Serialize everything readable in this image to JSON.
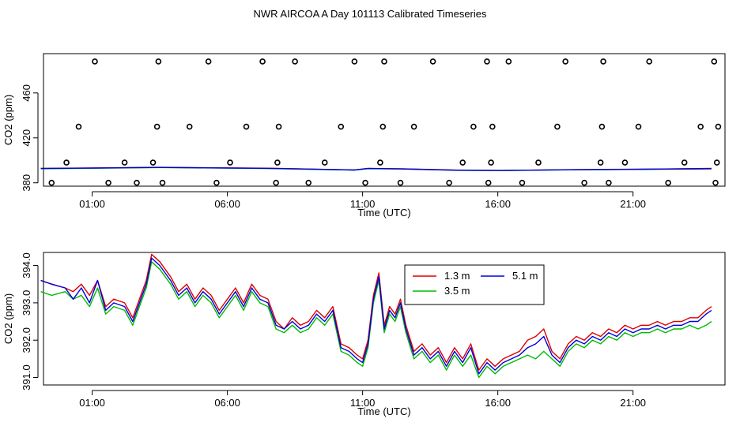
{
  "title": "NWR AIRCOA A  Day 101113  Calibrated Timeseries",
  "chart_data": [
    {
      "type": "scatter+line",
      "name": "top-panel",
      "xlabel": "Time (UTC)",
      "ylabel": "CO2 (ppm)",
      "xlim": [
        -0.8,
        24.4
      ],
      "ylim": [
        377,
        495
      ],
      "xticks": [
        1,
        6,
        11,
        16,
        21
      ],
      "xticklabels": [
        "01:00",
        "06:00",
        "11:00",
        "16:00",
        "21:00"
      ],
      "yticks": [
        380,
        420,
        460
      ],
      "yticklabels": [
        "380",
        "420",
        "460"
      ],
      "points_x": [
        -0.5,
        0.05,
        0.5,
        1.1,
        1.6,
        2.2,
        2.65,
        3.25,
        3.4,
        3.45,
        3.6,
        4.6,
        5.3,
        5.6,
        6.1,
        6.7,
        7.3,
        7.8,
        7.85,
        7.9,
        8.5,
        9.0,
        9.6,
        10.2,
        10.7,
        11.1,
        11.65,
        11.75,
        11.8,
        12.4,
        12.9,
        13.6,
        14.2,
        14.7,
        15.1,
        15.6,
        15.65,
        15.75,
        15.8,
        16.4,
        16.9,
        17.5,
        18.2,
        18.5,
        19.2,
        19.8,
        19.85,
        19.9,
        20.1,
        20.7,
        21.2,
        21.6,
        22.3,
        22.9,
        23.5,
        24.0,
        24.05,
        24.1,
        24.15
      ],
      "points_y": [
        380,
        398,
        430,
        488,
        380,
        398,
        380,
        398,
        430,
        488,
        380,
        430,
        488,
        380,
        398,
        430,
        488,
        380,
        398,
        430,
        488,
        380,
        398,
        430,
        488,
        380,
        398,
        430,
        488,
        380,
        430,
        488,
        380,
        398,
        430,
        488,
        380,
        398,
        430,
        488,
        380,
        398,
        430,
        488,
        380,
        398,
        430,
        488,
        380,
        398,
        430,
        488,
        380,
        398,
        430,
        488,
        380,
        398,
        430
      ],
      "series": [
        {
          "name": "1.3 m",
          "color": "#dd0000",
          "x": [
            -0.9,
            3.5,
            7.5,
            10.7,
            11.2,
            12.4,
            14.5,
            16.0,
            19.0,
            21.5,
            23.9
          ],
          "y": [
            392.8,
            393.8,
            393.0,
            391.5,
            392.8,
            392.5,
            391.3,
            391.0,
            391.8,
            392.2,
            392.8
          ]
        },
        {
          "name": "3.5 m",
          "color": "#00bb00",
          "x": [
            -0.9,
            3.5,
            7.5,
            10.7,
            11.2,
            12.4,
            14.5,
            16.0,
            19.0,
            21.5,
            23.9
          ],
          "y": [
            392.5,
            393.6,
            392.7,
            391.3,
            392.6,
            392.3,
            391.1,
            390.9,
            391.6,
            392.0,
            392.4
          ]
        },
        {
          "name": "5.1 m",
          "color": "#0000dd",
          "x": [
            -0.9,
            3.5,
            7.5,
            10.7,
            11.2,
            12.4,
            14.5,
            16.0,
            19.0,
            21.5,
            23.9
          ],
          "y": [
            392.7,
            393.7,
            392.9,
            391.4,
            392.7,
            392.4,
            391.2,
            391.0,
            391.7,
            392.1,
            392.6
          ]
        }
      ]
    },
    {
      "type": "line",
      "name": "bottom-panel",
      "xlabel": "Time (UTC)",
      "ylabel": "CO2 (ppm)",
      "xlim": [
        -0.8,
        24.4
      ],
      "ylim": [
        390.8,
        394.35
      ],
      "xticks": [
        1,
        6,
        11,
        16,
        21
      ],
      "xticklabels": [
        "01:00",
        "06:00",
        "11:00",
        "16:00",
        "21:00"
      ],
      "yticks": [
        391.0,
        392.0,
        393.0,
        394.0
      ],
      "yticklabels": [
        "391.0",
        "392.0",
        "393.0",
        "394.0"
      ],
      "legend": "top-center",
      "series": [
        {
          "name": "1.3 m",
          "color": "#dd0000",
          "x": [
            -0.9,
            -0.5,
            0,
            0.3,
            0.6,
            0.9,
            1.2,
            1.5,
            1.8,
            2.2,
            2.5,
            2.8,
            3.0,
            3.2,
            3.5,
            3.9,
            4.2,
            4.5,
            4.8,
            5.1,
            5.4,
            5.7,
            6.0,
            6.3,
            6.6,
            6.9,
            7.2,
            7.5,
            7.8,
            8.1,
            8.4,
            8.7,
            9.0,
            9.3,
            9.6,
            9.9,
            10.2,
            10.5,
            10.8,
            11.0,
            11.2,
            11.4,
            11.6,
            11.8,
            12.0,
            12.2,
            12.4,
            12.6,
            12.9,
            13.2,
            13.5,
            13.8,
            14.1,
            14.4,
            14.7,
            15.0,
            15.3,
            15.6,
            15.9,
            16.2,
            16.5,
            16.8,
            17.1,
            17.4,
            17.7,
            18.0,
            18.3,
            18.6,
            18.9,
            19.2,
            19.5,
            19.8,
            20.1,
            20.4,
            20.7,
            21.0,
            21.3,
            21.6,
            21.9,
            22.2,
            22.5,
            22.8,
            23.1,
            23.4,
            23.7,
            23.9
          ],
          "y": [
            393.6,
            393.5,
            393.4,
            393.3,
            393.5,
            393.2,
            393.6,
            392.9,
            393.1,
            393.0,
            392.6,
            393.2,
            393.6,
            394.3,
            394.1,
            393.7,
            393.3,
            393.5,
            393.1,
            393.4,
            393.2,
            392.8,
            393.1,
            393.4,
            393.0,
            393.5,
            393.2,
            393.1,
            392.5,
            392.3,
            392.6,
            392.4,
            392.5,
            392.8,
            392.6,
            392.9,
            391.9,
            391.8,
            391.6,
            391.5,
            392.0,
            393.2,
            393.8,
            392.4,
            392.9,
            392.7,
            393.1,
            392.4,
            391.7,
            391.9,
            391.6,
            391.8,
            391.4,
            391.8,
            391.5,
            391.9,
            391.2,
            391.5,
            391.3,
            391.5,
            391.6,
            391.7,
            392.0,
            392.1,
            392.3,
            391.7,
            391.5,
            391.9,
            392.1,
            392.0,
            392.2,
            392.1,
            392.3,
            392.2,
            392.4,
            392.3,
            392.4,
            392.4,
            392.5,
            392.4,
            392.5,
            392.5,
            392.6,
            392.6,
            392.8,
            392.9
          ]
        },
        {
          "name": "3.5 m",
          "color": "#00bb00",
          "x": [
            -0.9,
            -0.5,
            0,
            0.3,
            0.6,
            0.9,
            1.2,
            1.5,
            1.8,
            2.2,
            2.5,
            2.8,
            3.0,
            3.2,
            3.5,
            3.9,
            4.2,
            4.5,
            4.8,
            5.1,
            5.4,
            5.7,
            6.0,
            6.3,
            6.6,
            6.9,
            7.2,
            7.5,
            7.8,
            8.1,
            8.4,
            8.7,
            9.0,
            9.3,
            9.6,
            9.9,
            10.2,
            10.5,
            10.8,
            11.0,
            11.2,
            11.4,
            11.6,
            11.8,
            12.0,
            12.2,
            12.4,
            12.6,
            12.9,
            13.2,
            13.5,
            13.8,
            14.1,
            14.4,
            14.7,
            15.0,
            15.3,
            15.6,
            15.9,
            16.2,
            16.5,
            16.8,
            17.1,
            17.4,
            17.7,
            18.0,
            18.3,
            18.6,
            18.9,
            19.2,
            19.5,
            19.8,
            20.1,
            20.4,
            20.7,
            21.0,
            21.3,
            21.6,
            21.9,
            22.2,
            22.5,
            22.8,
            23.1,
            23.4,
            23.7,
            23.9
          ],
          "y": [
            393.3,
            393.2,
            393.3,
            393.1,
            393.2,
            392.9,
            393.4,
            392.7,
            392.9,
            392.8,
            392.4,
            393.0,
            393.4,
            394.1,
            393.9,
            393.5,
            393.1,
            393.3,
            392.9,
            393.2,
            393.0,
            392.6,
            392.9,
            393.2,
            392.8,
            393.3,
            393.0,
            392.9,
            392.3,
            392.2,
            392.4,
            392.2,
            392.3,
            392.6,
            392.4,
            392.7,
            391.7,
            391.6,
            391.4,
            391.3,
            391.8,
            393.0,
            393.6,
            392.2,
            392.7,
            392.5,
            392.9,
            392.2,
            391.5,
            391.7,
            391.4,
            391.6,
            391.2,
            391.6,
            391.3,
            391.6,
            391.0,
            391.3,
            391.1,
            391.3,
            391.4,
            391.5,
            391.6,
            391.5,
            391.7,
            391.5,
            391.3,
            391.7,
            391.9,
            391.8,
            392.0,
            391.9,
            392.1,
            392.0,
            392.2,
            392.1,
            392.2,
            392.2,
            392.3,
            392.2,
            392.3,
            392.3,
            392.4,
            392.3,
            392.4,
            392.5
          ]
        },
        {
          "name": "5.1 m",
          "color": "#0000dd",
          "x": [
            -0.9,
            -0.5,
            0,
            0.3,
            0.6,
            0.9,
            1.2,
            1.5,
            1.8,
            2.2,
            2.5,
            2.8,
            3.0,
            3.2,
            3.5,
            3.9,
            4.2,
            4.5,
            4.8,
            5.1,
            5.4,
            5.7,
            6.0,
            6.3,
            6.6,
            6.9,
            7.2,
            7.5,
            7.8,
            8.1,
            8.4,
            8.7,
            9.0,
            9.3,
            9.6,
            9.9,
            10.2,
            10.5,
            10.8,
            11.0,
            11.2,
            11.4,
            11.6,
            11.8,
            12.0,
            12.2,
            12.4,
            12.6,
            12.9,
            13.2,
            13.5,
            13.8,
            14.1,
            14.4,
            14.7,
            15.0,
            15.3,
            15.6,
            15.9,
            16.2,
            16.5,
            16.8,
            17.1,
            17.4,
            17.7,
            18.0,
            18.3,
            18.6,
            18.9,
            19.2,
            19.5,
            19.8,
            20.1,
            20.4,
            20.7,
            21.0,
            21.3,
            21.6,
            21.9,
            22.2,
            22.5,
            22.8,
            23.1,
            23.4,
            23.7,
            23.9
          ],
          "y": [
            393.6,
            393.5,
            393.4,
            393.1,
            393.4,
            393.0,
            393.6,
            392.8,
            393.0,
            392.9,
            392.5,
            393.1,
            393.5,
            394.2,
            394.0,
            393.6,
            393.2,
            393.4,
            393.0,
            393.3,
            393.1,
            392.7,
            393.0,
            393.3,
            392.9,
            393.4,
            393.1,
            393.0,
            392.4,
            392.3,
            392.5,
            392.3,
            392.4,
            392.7,
            392.5,
            392.8,
            391.8,
            391.7,
            391.5,
            391.4,
            391.9,
            393.1,
            393.7,
            392.3,
            392.8,
            392.6,
            393.0,
            392.3,
            391.6,
            391.8,
            391.5,
            391.7,
            391.3,
            391.7,
            391.4,
            391.8,
            391.1,
            391.4,
            391.2,
            391.4,
            391.5,
            391.6,
            391.8,
            391.9,
            392.1,
            391.6,
            391.4,
            391.8,
            392.0,
            391.9,
            392.1,
            392.0,
            392.2,
            392.1,
            392.3,
            392.2,
            392.3,
            392.3,
            392.4,
            392.3,
            392.4,
            392.4,
            392.5,
            392.5,
            392.7,
            392.8
          ]
        }
      ]
    }
  ]
}
